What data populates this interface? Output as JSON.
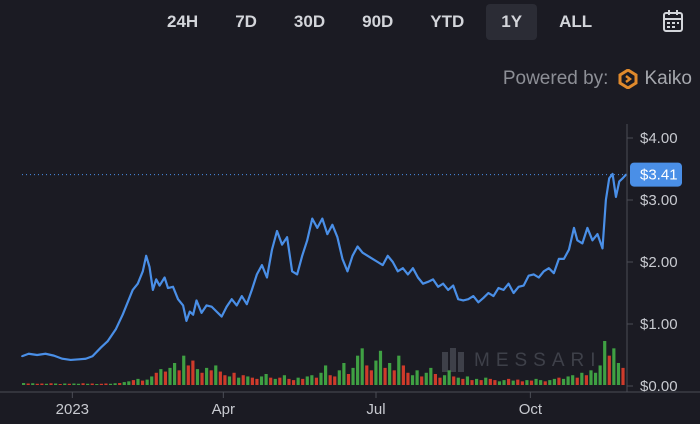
{
  "toolbar": {
    "ranges": [
      "24H",
      "7D",
      "30D",
      "90D",
      "YTD",
      "1Y",
      "ALL"
    ],
    "active_range": "1Y",
    "calendar_icon": "calendar-icon"
  },
  "attribution": {
    "prefix": "Powered by:",
    "brand": "Kaiko",
    "icon": "kaiko-logo-icon"
  },
  "watermark": {
    "text": "MESSARI",
    "icon": "messari-logo-icon"
  },
  "colors": {
    "line": "#4a8fe7",
    "up": "#3fa043",
    "down": "#cf3b2b",
    "background": "#1b1b23"
  },
  "chart_data": {
    "type": "line",
    "title": "",
    "y_axis": {
      "ticks": [
        "$4.00",
        "$3.00",
        "$2.00",
        "$1.00",
        "$0.00"
      ],
      "ylim": [
        0,
        4
      ],
      "position": "right"
    },
    "x_axis": {
      "ticks": [
        "2023",
        "Apr",
        "Jul",
        "Oct"
      ]
    },
    "current_price": {
      "value": 3.41,
      "label": "$3.41"
    },
    "price_points": [
      [
        "2022-12-02",
        0.48
      ],
      [
        "2022-12-06",
        0.52
      ],
      [
        "2022-12-11",
        0.5
      ],
      [
        "2022-12-16",
        0.52
      ],
      [
        "2022-12-21",
        0.49
      ],
      [
        "2022-12-26",
        0.44
      ],
      [
        "2022-12-31",
        0.42
      ],
      [
        "2023-01-05",
        0.43
      ],
      [
        "2023-01-09",
        0.44
      ],
      [
        "2023-01-13",
        0.48
      ],
      [
        "2023-01-18",
        0.62
      ],
      [
        "2023-01-22",
        0.72
      ],
      [
        "2023-01-27",
        0.92
      ],
      [
        "2023-01-31",
        1.15
      ],
      [
        "2023-02-03",
        1.35
      ],
      [
        "2023-02-06",
        1.55
      ],
      [
        "2023-02-09",
        1.65
      ],
      [
        "2023-02-12",
        1.85
      ],
      [
        "2023-02-14",
        2.1
      ],
      [
        "2023-02-16",
        1.92
      ],
      [
        "2023-02-18",
        1.55
      ],
      [
        "2023-02-20",
        1.72
      ],
      [
        "2023-02-22",
        1.62
      ],
      [
        "2023-02-25",
        1.75
      ],
      [
        "2023-02-27",
        1.58
      ],
      [
        "2023-03-02",
        1.6
      ],
      [
        "2023-03-05",
        1.4
      ],
      [
        "2023-03-08",
        1.3
      ],
      [
        "2023-03-10",
        1.05
      ],
      [
        "2023-03-12",
        1.2
      ],
      [
        "2023-03-14",
        1.15
      ],
      [
        "2023-03-16",
        1.38
      ],
      [
        "2023-03-19",
        1.18
      ],
      [
        "2023-03-22",
        1.3
      ],
      [
        "2023-03-25",
        1.28
      ],
      [
        "2023-03-28",
        1.2
      ],
      [
        "2023-03-31",
        1.12
      ],
      [
        "2023-04-03",
        1.28
      ],
      [
        "2023-04-06",
        1.4
      ],
      [
        "2023-04-09",
        1.3
      ],
      [
        "2023-04-12",
        1.45
      ],
      [
        "2023-04-15",
        1.32
      ],
      [
        "2023-04-18",
        1.55
      ],
      [
        "2023-04-21",
        1.8
      ],
      [
        "2023-04-24",
        1.95
      ],
      [
        "2023-04-27",
        1.75
      ],
      [
        "2023-04-30",
        2.2
      ],
      [
        "2023-05-03",
        2.5
      ],
      [
        "2023-05-06",
        2.28
      ],
      [
        "2023-05-09",
        2.4
      ],
      [
        "2023-05-12",
        1.85
      ],
      [
        "2023-05-15",
        1.8
      ],
      [
        "2023-05-18",
        2.1
      ],
      [
        "2023-05-21",
        2.35
      ],
      [
        "2023-05-24",
        2.7
      ],
      [
        "2023-05-27",
        2.55
      ],
      [
        "2023-05-30",
        2.7
      ],
      [
        "2023-06-02",
        2.45
      ],
      [
        "2023-06-05",
        2.6
      ],
      [
        "2023-06-08",
        2.4
      ],
      [
        "2023-06-11",
        2.05
      ],
      [
        "2023-06-14",
        1.85
      ],
      [
        "2023-06-17",
        2.1
      ],
      [
        "2023-06-20",
        2.25
      ],
      [
        "2023-06-23",
        2.15
      ],
      [
        "2023-06-26",
        2.1
      ],
      [
        "2023-06-29",
        2.05
      ],
      [
        "2023-07-02",
        2.0
      ],
      [
        "2023-07-05",
        1.95
      ],
      [
        "2023-07-08",
        2.1
      ],
      [
        "2023-07-11",
        2.0
      ],
      [
        "2023-07-14",
        1.85
      ],
      [
        "2023-07-17",
        1.9
      ],
      [
        "2023-07-20",
        1.8
      ],
      [
        "2023-07-23",
        1.9
      ],
      [
        "2023-07-26",
        1.75
      ],
      [
        "2023-07-29",
        1.65
      ],
      [
        "2023-08-01",
        1.68
      ],
      [
        "2023-08-04",
        1.72
      ],
      [
        "2023-08-07",
        1.6
      ],
      [
        "2023-08-10",
        1.65
      ],
      [
        "2023-08-13",
        1.55
      ],
      [
        "2023-08-16",
        1.62
      ],
      [
        "2023-08-19",
        1.4
      ],
      [
        "2023-08-22",
        1.38
      ],
      [
        "2023-08-25",
        1.4
      ],
      [
        "2023-08-28",
        1.45
      ],
      [
        "2023-08-31",
        1.35
      ],
      [
        "2023-09-03",
        1.42
      ],
      [
        "2023-09-06",
        1.5
      ],
      [
        "2023-09-09",
        1.45
      ],
      [
        "2023-09-12",
        1.58
      ],
      [
        "2023-09-15",
        1.55
      ],
      [
        "2023-09-18",
        1.65
      ],
      [
        "2023-09-21",
        1.5
      ],
      [
        "2023-09-24",
        1.6
      ],
      [
        "2023-09-27",
        1.62
      ],
      [
        "2023-09-30",
        1.78
      ],
      [
        "2023-10-03",
        1.8
      ],
      [
        "2023-10-06",
        1.75
      ],
      [
        "2023-10-09",
        1.85
      ],
      [
        "2023-10-12",
        1.9
      ],
      [
        "2023-10-15",
        1.82
      ],
      [
        "2023-10-18",
        2.05
      ],
      [
        "2023-10-21",
        2.05
      ],
      [
        "2023-10-24",
        2.2
      ],
      [
        "2023-10-27",
        2.55
      ],
      [
        "2023-10-29",
        2.35
      ],
      [
        "2023-11-01",
        2.3
      ],
      [
        "2023-11-04",
        2.55
      ],
      [
        "2023-11-07",
        2.35
      ],
      [
        "2023-11-10",
        2.45
      ],
      [
        "2023-11-13",
        2.22
      ],
      [
        "2023-11-15",
        3.0
      ],
      [
        "2023-11-17",
        3.35
      ],
      [
        "2023-11-19",
        3.42
      ],
      [
        "2023-11-21",
        3.05
      ],
      [
        "2023-11-23",
        3.3
      ],
      [
        "2023-11-25",
        3.35
      ],
      [
        "2023-11-27",
        3.41
      ]
    ],
    "volume_values": [
      0.8,
      0.6,
      0.7,
      0.5,
      0.6,
      0.5,
      0.7,
      0.6,
      0.4,
      0.6,
      0.5,
      0.6,
      0.5,
      0.7,
      0.5,
      0.6,
      0.4,
      0.5,
      0.6,
      0.5,
      0.7,
      0.8,
      1.2,
      1.5,
      2.0,
      2.5,
      1.8,
      2.2,
      3.5,
      5.0,
      6.5,
      5.5,
      7.0,
      9.0,
      6.0,
      12.0,
      8.0,
      10.0,
      6.5,
      5.0,
      7.0,
      6.0,
      8.0,
      5.5,
      4.0,
      3.5,
      5.0,
      3.0,
      4.0,
      3.5,
      3.0,
      2.5,
      3.5,
      4.5,
      3.0,
      2.5,
      3.0,
      4.0,
      2.5,
      2.0,
      3.0,
      2.5,
      3.5,
      4.0,
      3.0,
      5.0,
      8.0,
      4.0,
      3.5,
      6.0,
      9.0,
      4.5,
      7.0,
      12.0,
      15.0,
      8.0,
      6.0,
      10.0,
      14.0,
      7.0,
      9.0,
      6.0,
      12.0,
      8.0,
      5.0,
      4.0,
      6.0,
      3.5,
      5.0,
      7.0,
      4.5,
      3.0,
      4.0,
      6.0,
      3.5,
      3.0,
      2.5,
      3.5,
      2.0,
      2.5,
      2.0,
      3.0,
      2.5,
      2.0,
      1.5,
      2.0,
      2.5,
      1.8,
      2.2,
      1.5,
      2.0,
      1.8,
      2.5,
      2.0,
      1.5,
      2.0,
      2.5,
      3.0,
      2.5,
      3.5,
      4.0,
      3.0,
      5.0,
      4.0,
      6.0,
      5.0,
      8.0,
      18.0,
      12.0,
      15.0,
      9.0,
      7.0
    ],
    "volume_colors": [
      1,
      0,
      1,
      0,
      0,
      1,
      0,
      1,
      0,
      1,
      0,
      1,
      1,
      0,
      1,
      0,
      1,
      0,
      0,
      1,
      1,
      0,
      1,
      1,
      0,
      1,
      0,
      1,
      1,
      0,
      1,
      0,
      1,
      1,
      0,
      1,
      0,
      0,
      1,
      0,
      1,
      0,
      1,
      0,
      0,
      1,
      0,
      1,
      0,
      1,
      0,
      0,
      1,
      1,
      0,
      1,
      0,
      1,
      0,
      0,
      1,
      0,
      1,
      1,
      0,
      1,
      1,
      0,
      0,
      1,
      1,
      0,
      1,
      1,
      1,
      0,
      0,
      1,
      1,
      0,
      1,
      0,
      1,
      0,
      0,
      1,
      1,
      0,
      1,
      1,
      0,
      0,
      1,
      1,
      0,
      1,
      0,
      1,
      0,
      1,
      0,
      1,
      0,
      0,
      1,
      1,
      0,
      1,
      0,
      0,
      1,
      0,
      1,
      1,
      0,
      1,
      1,
      0,
      1,
      1,
      1,
      0,
      1,
      0,
      1,
      1,
      1,
      1,
      0,
      1,
      1,
      0
    ]
  }
}
